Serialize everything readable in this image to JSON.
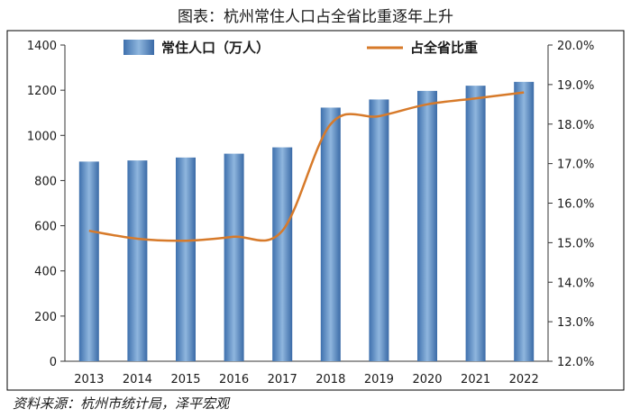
{
  "colors": {
    "bar_left": "#3e70ad",
    "bar_mid": "#8fb6de",
    "bar_right": "#3a6aa6",
    "line": "#d77a2a",
    "axis": "#333333",
    "frame": "#000000"
  },
  "chart_data": {
    "type": "bar",
    "title": "图表：杭州常住人口占全省比重逐年上升",
    "categories": [
      "2013",
      "2014",
      "2015",
      "2016",
      "2017",
      "2018",
      "2019",
      "2020",
      "2021",
      "2022"
    ],
    "series": [
      {
        "name": "常住人口（万人）",
        "type": "bar",
        "axis": "left",
        "values": [
          884,
          889,
          902,
          919,
          947,
          1123,
          1159,
          1197,
          1220,
          1237
        ]
      },
      {
        "name": "占全省比重",
        "type": "line",
        "axis": "right",
        "values": [
          15.3,
          15.1,
          15.05,
          15.15,
          15.3,
          18.0,
          18.2,
          18.5,
          18.65,
          18.8
        ]
      }
    ],
    "y_left": {
      "ylim": [
        0,
        1400
      ],
      "ticks": [
        0,
        200,
        400,
        600,
        800,
        1000,
        1200,
        1400
      ],
      "tick_labels": [
        "0",
        "200",
        "400",
        "600",
        "800",
        "1000",
        "1200",
        "1400"
      ]
    },
    "y_right": {
      "ylim": [
        12.0,
        20.0
      ],
      "ticks": [
        12,
        13,
        14,
        15,
        16,
        17,
        18,
        19,
        20
      ],
      "tick_labels": [
        "12.0%",
        "13.0%",
        "14.0%",
        "15.0%",
        "16.0%",
        "17.0%",
        "18.0%",
        "19.0%",
        "20.0%"
      ]
    },
    "legend_position": "top",
    "grid": false
  },
  "source": "资料来源：杭州市统计局，泽平宏观"
}
